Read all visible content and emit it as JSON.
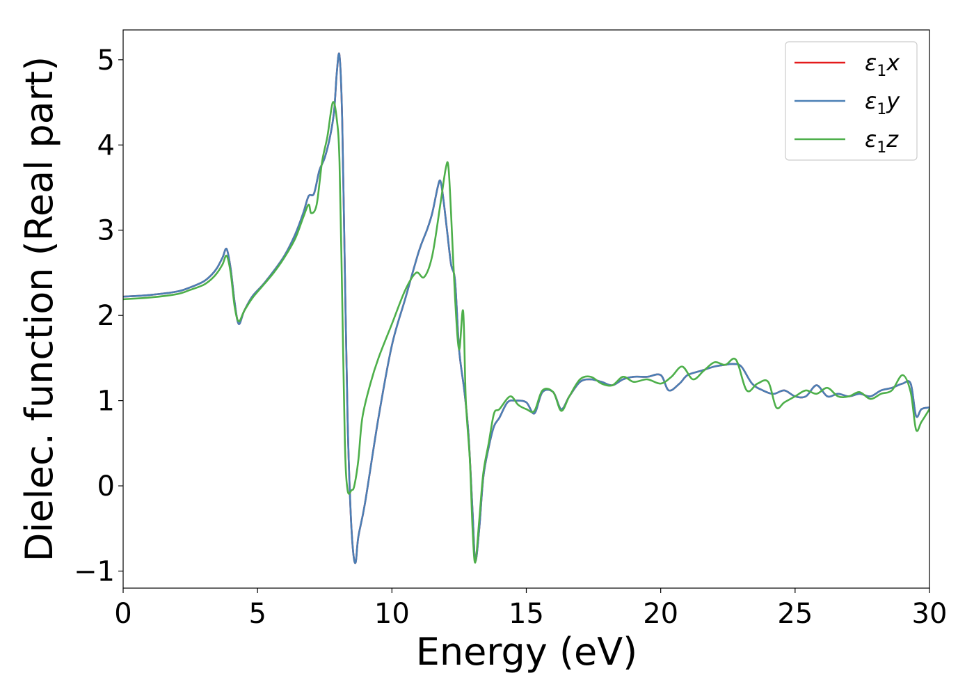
{
  "chart_data": {
    "type": "line",
    "xlabel": "Energy (eV)",
    "ylabel": "Dielec. function (Real part)",
    "xlim": [
      0,
      30
    ],
    "ylim": [
      -1.2,
      5.35
    ],
    "xticks": [
      0,
      5,
      10,
      15,
      20,
      25,
      30
    ],
    "xtick_labels": [
      "0",
      "5",
      "10",
      "15",
      "20",
      "25",
      "30"
    ],
    "yticks": [
      -1,
      0,
      1,
      2,
      3,
      4,
      5
    ],
    "ytick_labels": [
      "−1",
      "0",
      "1",
      "2",
      "3",
      "4",
      "5"
    ],
    "grid": false,
    "legend_position": "top-right",
    "series": [
      {
        "name": "ε₁x",
        "legend_symbol": "ε",
        "legend_sub": "1",
        "legend_axis": "x",
        "color": "#e41a1c",
        "x": [
          0,
          1,
          2,
          2.5,
          3,
          3.3,
          3.5,
          3.7,
          3.85,
          4.0,
          4.15,
          4.3,
          4.5,
          4.8,
          5.2,
          5.6,
          6.0,
          6.4,
          6.7,
          6.9,
          7.1,
          7.3,
          7.5,
          7.7,
          7.85,
          7.95,
          8.05,
          8.15,
          8.25,
          8.35,
          8.45,
          8.55,
          8.65,
          8.75,
          9.0,
          9.5,
          10.0,
          10.5,
          11.0,
          11.3,
          11.5,
          11.7,
          11.8,
          11.9,
          12.05,
          12.2,
          12.35,
          12.5,
          12.7,
          12.85,
          13.0,
          13.1,
          13.25,
          13.4,
          13.6,
          13.8,
          14.0,
          14.3,
          14.6,
          15.0,
          15.3,
          15.6,
          16.0,
          16.3,
          16.6,
          17.0,
          17.4,
          17.8,
          18.2,
          18.6,
          19.0,
          19.5,
          20.0,
          20.3,
          20.7,
          21.0,
          21.5,
          22.0,
          22.4,
          22.7,
          23.0,
          23.4,
          23.8,
          24.2,
          24.6,
          25.0,
          25.4,
          25.8,
          26.2,
          26.6,
          27.0,
          27.4,
          27.8,
          28.2,
          28.6,
          29.0,
          29.3,
          29.5,
          29.7,
          30.0
        ],
        "y": [
          2.22,
          2.24,
          2.28,
          2.33,
          2.4,
          2.48,
          2.56,
          2.68,
          2.78,
          2.55,
          2.15,
          1.9,
          2.05,
          2.22,
          2.36,
          2.52,
          2.7,
          2.95,
          3.2,
          3.4,
          3.43,
          3.7,
          3.85,
          4.1,
          4.4,
          4.85,
          5.05,
          4.3,
          2.5,
          0.8,
          -0.2,
          -0.75,
          -0.9,
          -0.6,
          -0.2,
          0.8,
          1.65,
          2.2,
          2.75,
          3.0,
          3.2,
          3.5,
          3.58,
          3.4,
          3.0,
          2.6,
          2.4,
          1.6,
          1.1,
          0.6,
          -0.3,
          -0.88,
          -0.5,
          0.1,
          0.45,
          0.7,
          0.8,
          0.98,
          1.0,
          0.98,
          0.85,
          1.1,
          1.1,
          0.9,
          1.05,
          1.22,
          1.25,
          1.22,
          1.18,
          1.25,
          1.28,
          1.28,
          1.3,
          1.12,
          1.2,
          1.3,
          1.35,
          1.4,
          1.42,
          1.43,
          1.4,
          1.2,
          1.12,
          1.08,
          1.12,
          1.05,
          1.05,
          1.18,
          1.05,
          1.08,
          1.05,
          1.08,
          1.05,
          1.12,
          1.15,
          1.2,
          1.2,
          0.82,
          0.9,
          0.92
        ]
      },
      {
        "name": "ε₁y",
        "legend_symbol": "ε",
        "legend_sub": "1",
        "legend_axis": "y",
        "color": "#4a7fb5",
        "x": [
          0,
          1,
          2,
          2.5,
          3,
          3.3,
          3.5,
          3.7,
          3.85,
          4.0,
          4.15,
          4.3,
          4.5,
          4.8,
          5.2,
          5.6,
          6.0,
          6.4,
          6.7,
          6.9,
          7.1,
          7.3,
          7.5,
          7.7,
          7.85,
          7.95,
          8.05,
          8.15,
          8.25,
          8.35,
          8.45,
          8.55,
          8.65,
          8.75,
          9.0,
          9.5,
          10.0,
          10.5,
          11.0,
          11.3,
          11.5,
          11.7,
          11.8,
          11.9,
          12.05,
          12.2,
          12.35,
          12.5,
          12.7,
          12.85,
          13.0,
          13.1,
          13.25,
          13.4,
          13.6,
          13.8,
          14.0,
          14.3,
          14.6,
          15.0,
          15.3,
          15.6,
          16.0,
          16.3,
          16.6,
          17.0,
          17.4,
          17.8,
          18.2,
          18.6,
          19.0,
          19.5,
          20.0,
          20.3,
          20.7,
          21.0,
          21.5,
          22.0,
          22.4,
          22.7,
          23.0,
          23.4,
          23.8,
          24.2,
          24.6,
          25.0,
          25.4,
          25.8,
          26.2,
          26.6,
          27.0,
          27.4,
          27.8,
          28.2,
          28.6,
          29.0,
          29.3,
          29.5,
          29.7,
          30.0
        ],
        "y": [
          2.22,
          2.24,
          2.28,
          2.33,
          2.4,
          2.48,
          2.56,
          2.68,
          2.78,
          2.55,
          2.15,
          1.9,
          2.05,
          2.22,
          2.36,
          2.52,
          2.7,
          2.95,
          3.2,
          3.4,
          3.43,
          3.7,
          3.85,
          4.1,
          4.4,
          4.85,
          5.05,
          4.3,
          2.5,
          0.8,
          -0.2,
          -0.75,
          -0.9,
          -0.6,
          -0.2,
          0.8,
          1.65,
          2.2,
          2.75,
          3.0,
          3.2,
          3.5,
          3.58,
          3.4,
          3.0,
          2.6,
          2.4,
          1.6,
          1.1,
          0.6,
          -0.3,
          -0.88,
          -0.5,
          0.1,
          0.45,
          0.7,
          0.8,
          0.98,
          1.0,
          0.98,
          0.85,
          1.1,
          1.1,
          0.9,
          1.05,
          1.22,
          1.25,
          1.22,
          1.18,
          1.25,
          1.28,
          1.28,
          1.3,
          1.12,
          1.2,
          1.3,
          1.35,
          1.4,
          1.42,
          1.43,
          1.4,
          1.2,
          1.12,
          1.08,
          1.12,
          1.05,
          1.05,
          1.18,
          1.05,
          1.08,
          1.05,
          1.08,
          1.05,
          1.12,
          1.15,
          1.2,
          1.2,
          0.82,
          0.9,
          0.92
        ]
      },
      {
        "name": "ε₁z",
        "legend_symbol": "ε",
        "legend_sub": "1",
        "legend_axis": "z",
        "color": "#4daf4a",
        "x": [
          0,
          1,
          2,
          2.5,
          3,
          3.3,
          3.5,
          3.7,
          3.85,
          4.0,
          4.15,
          4.3,
          4.5,
          4.8,
          5.2,
          5.6,
          6.0,
          6.4,
          6.7,
          6.9,
          7.0,
          7.2,
          7.4,
          7.6,
          7.8,
          7.95,
          8.05,
          8.15,
          8.25,
          8.35,
          8.5,
          8.6,
          8.75,
          8.9,
          9.2,
          9.5,
          10.0,
          10.5,
          10.9,
          11.2,
          11.5,
          11.8,
          12.0,
          12.1,
          12.2,
          12.35,
          12.5,
          12.65,
          12.75,
          12.9,
          13.0,
          13.1,
          13.25,
          13.4,
          13.6,
          13.8,
          14.0,
          14.4,
          14.7,
          15.0,
          15.3,
          15.6,
          16.0,
          16.3,
          16.6,
          17.0,
          17.4,
          17.8,
          18.2,
          18.6,
          19.0,
          19.5,
          20.0,
          20.4,
          20.8,
          21.2,
          21.6,
          22.0,
          22.4,
          22.8,
          23.2,
          23.6,
          24.0,
          24.3,
          24.6,
          25.0,
          25.4,
          25.8,
          26.2,
          26.6,
          27.0,
          27.4,
          27.8,
          28.2,
          28.6,
          29.0,
          29.3,
          29.5,
          29.7,
          30.0
        ],
        "y": [
          2.19,
          2.21,
          2.25,
          2.3,
          2.36,
          2.43,
          2.5,
          2.6,
          2.7,
          2.5,
          2.1,
          1.93,
          2.05,
          2.2,
          2.35,
          2.5,
          2.68,
          2.9,
          3.15,
          3.3,
          3.2,
          3.3,
          3.8,
          4.1,
          4.5,
          4.3,
          3.8,
          2.2,
          0.5,
          -0.05,
          -0.05,
          0.0,
          0.3,
          0.8,
          1.2,
          1.5,
          1.9,
          2.3,
          2.5,
          2.45,
          2.7,
          3.3,
          3.72,
          3.75,
          3.2,
          2.2,
          1.6,
          2.05,
          1.0,
          0.3,
          -0.5,
          -0.9,
          -0.4,
          0.15,
          0.5,
          0.85,
          0.9,
          1.05,
          0.95,
          0.9,
          0.88,
          1.12,
          1.1,
          0.88,
          1.05,
          1.25,
          1.28,
          1.2,
          1.18,
          1.28,
          1.22,
          1.25,
          1.2,
          1.28,
          1.4,
          1.25,
          1.35,
          1.45,
          1.42,
          1.48,
          1.12,
          1.2,
          1.22,
          0.92,
          0.98,
          1.05,
          1.12,
          1.08,
          1.15,
          1.05,
          1.05,
          1.1,
          1.02,
          1.08,
          1.12,
          1.3,
          1.1,
          0.66,
          0.75,
          0.9
        ]
      }
    ]
  }
}
